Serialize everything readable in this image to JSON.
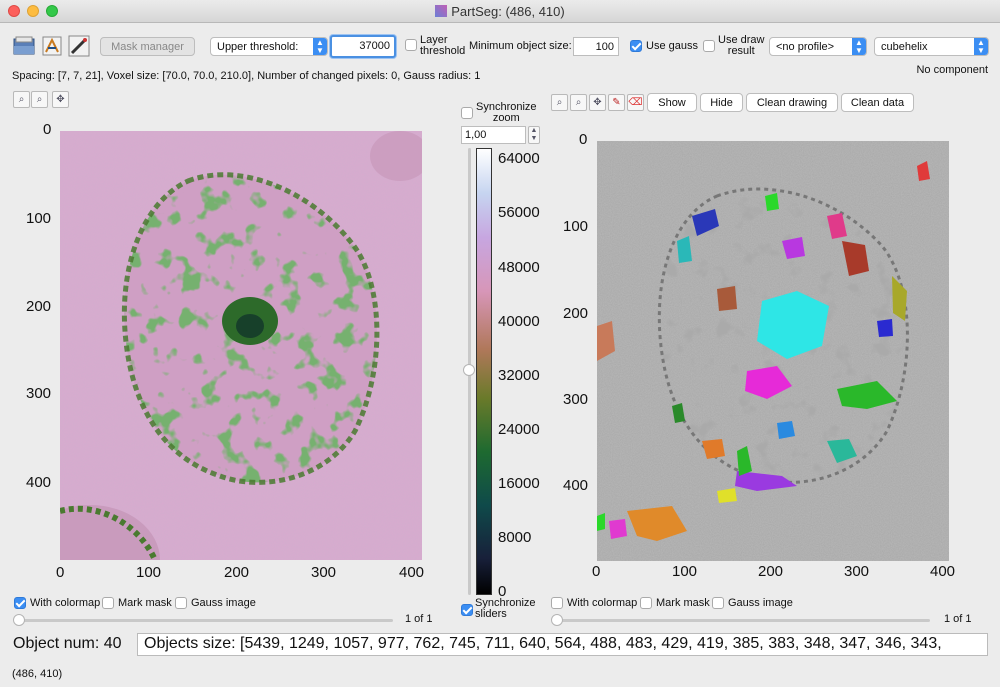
{
  "window": {
    "title": "PartSeg:  (486, 410)"
  },
  "toolbar": {
    "mask_manager": "Mask manager",
    "threshold_type": "Upper threshold:",
    "threshold_value": "37000",
    "layer_threshold_line1": "Layer",
    "layer_threshold_line2": "threshold",
    "min_object_size_label": "Minimum object size:",
    "min_object_size_value": "100",
    "use_gauss": "Use gauss",
    "use_draw_result_line1": "Use draw",
    "use_draw_result_line2": "result",
    "profile": "<no profile>",
    "colormap": "cubehelix"
  },
  "info": {
    "spacing": "Spacing: [7, 7, 21], Voxel size: [70.0, 70.0, 210.0],  Number of changed pixels: 0, Gauss radius: 1",
    "component": "No component"
  },
  "left_plot": {
    "x_ticks": [
      "0",
      "100",
      "200",
      "300",
      "400"
    ],
    "y_ticks": [
      "0",
      "100",
      "200",
      "300",
      "400"
    ]
  },
  "right_plot": {
    "x_ticks": [
      "0",
      "100",
      "200",
      "300",
      "400"
    ],
    "y_ticks": [
      "0",
      "100",
      "200",
      "300",
      "400"
    ],
    "show": "Show",
    "hide": "Hide",
    "clean_drawing": "Clean drawing",
    "clean_data": "Clean data"
  },
  "colorbar": {
    "sync_zoom_line1": "Synchronize",
    "sync_zoom_line2": "zoom",
    "zoom_value": "1,00",
    "ticks": [
      "64000",
      "56000",
      "48000",
      "40000",
      "32000",
      "24000",
      "16000",
      "8000",
      "0"
    ],
    "sync_sliders_line1": "Synchronize",
    "sync_sliders_line2": "sliders"
  },
  "left_options": {
    "with_colormap": "With colormap",
    "mark_mask": "Mark mask",
    "gauss_image": "Gauss image",
    "page": "1 of 1"
  },
  "right_options": {
    "with_colormap": "With colormap",
    "mark_mask": "Mark mask",
    "gauss_image": "Gauss image",
    "page": "1 of 1"
  },
  "objects": {
    "num": "Object num: 40",
    "sizes": "Objects size: [5439, 1249, 1057, 977, 762, 745, 711, 640, 564, 488, 483, 429, 419, 385, 383, 348, 347, 346, 343,"
  },
  "status": "(486, 410)",
  "colors": {
    "accent": "#3b8ef3",
    "pink": "#d9a8cf",
    "green": "#2f6e2a"
  }
}
